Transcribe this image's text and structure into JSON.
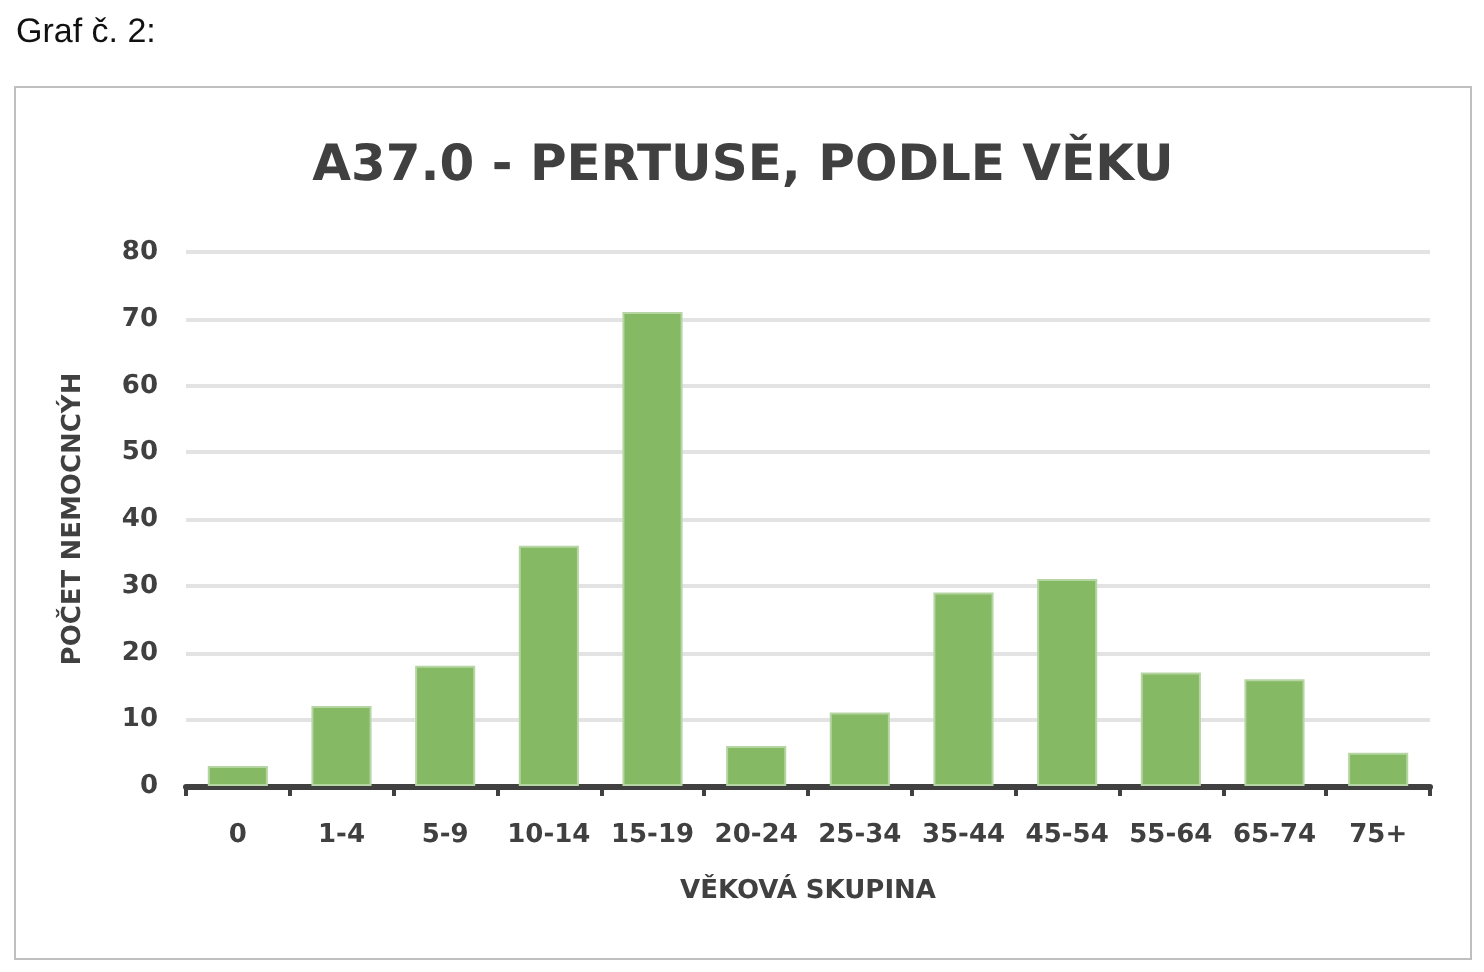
{
  "chart_data": {
    "type": "bar",
    "title": "A37.0 - PERTUSE, PODLE VĚKU",
    "xlabel": "VĚKOVÁ SKUPINA",
    "ylabel": "POČET NEMOCNCÝH",
    "annotations": [
      "Graf č. 2:"
    ],
    "categories": [
      "0",
      "1-4",
      "5-9",
      "10-14",
      "15-19",
      "20-24",
      "25-34",
      "35-44",
      "45-54",
      "55-64",
      "65-74",
      "75+"
    ],
    "values": [
      3,
      12,
      18,
      36,
      71,
      6,
      11,
      29,
      31,
      17,
      16,
      5
    ],
    "color": "#86b964",
    "ylim": [
      0,
      80
    ],
    "yticks": [
      0,
      10,
      20,
      30,
      40,
      50,
      60,
      70,
      80
    ],
    "grid": "y"
  }
}
